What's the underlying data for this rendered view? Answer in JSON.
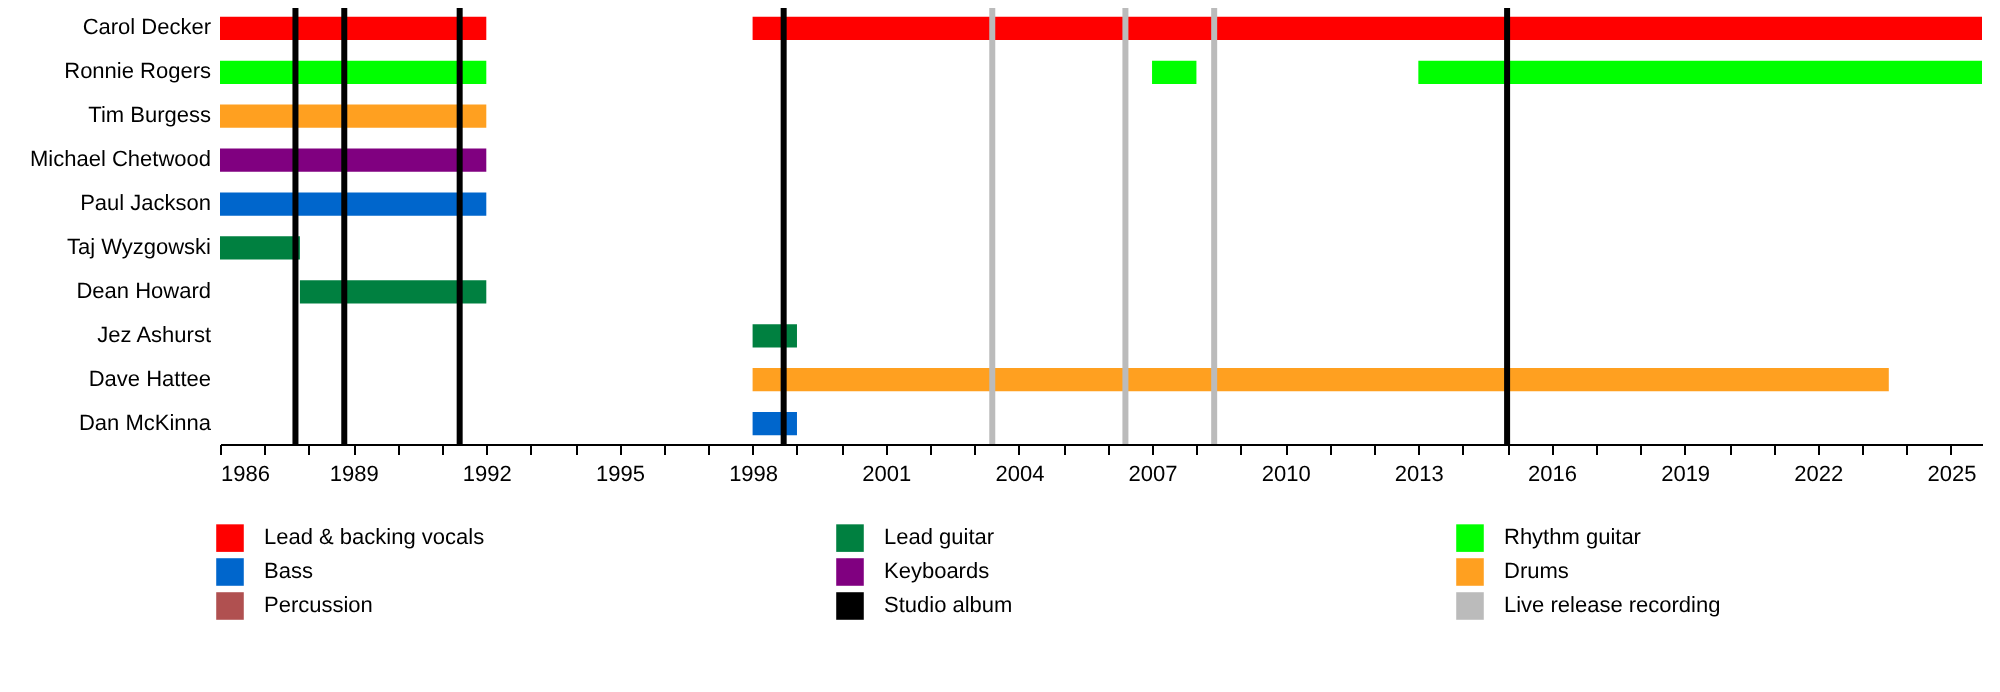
{
  "chart_data": {
    "type": "bar",
    "orientation": "horizontal",
    "categories": [
      "Carol Decker",
      "Ronnie Rogers",
      "Tim Burgess",
      "Michael Chetwood",
      "Paul Jackson",
      "Taj Wyzgowski",
      "Dean Howard",
      "Jez Ashurst",
      "Dave Hattee",
      "Dan McKinna"
    ],
    "series": [
      {
        "name": "Lead & backing vocals",
        "color": "#ff0000",
        "values": [
          6,
          null,
          null,
          null,
          null,
          null,
          null,
          null,
          null,
          null
        ],
        "base": [
          1986,
          null,
          null,
          null,
          null,
          null,
          null,
          null,
          null,
          null
        ]
      },
      {
        "name": "Lead guitar",
        "color": "#008040",
        "values": [
          null,
          null,
          null,
          null,
          null,
          1.8,
          4.2,
          null,
          null,
          null
        ],
        "base": [
          null,
          null,
          null,
          null,
          null,
          1986,
          1987.8,
          null,
          null,
          null
        ]
      },
      {
        "name": "Rhythm guitar",
        "color": "#00ff00",
        "values": [
          null,
          6,
          null,
          null,
          null,
          null,
          null,
          null,
          null,
          null
        ],
        "base": [
          null,
          1986,
          null,
          null,
          null,
          null,
          null,
          null,
          null,
          null
        ]
      },
      {
        "name": "Bass",
        "color": "#0066cc",
        "values": [
          null,
          null,
          null,
          null,
          6,
          null,
          null,
          null,
          null,
          null
        ],
        "base": [
          null,
          null,
          null,
          null,
          1986,
          null,
          null,
          null,
          null,
          null
        ]
      },
      {
        "name": "Keyboards",
        "color": "#800080",
        "values": [
          null,
          null,
          null,
          6,
          null,
          null,
          null,
          null,
          null,
          null
        ],
        "base": [
          null,
          null,
          null,
          1986,
          null,
          null,
          null,
          null,
          null,
          null
        ]
      },
      {
        "name": "Drums",
        "color": "#ffa020",
        "values": [
          null,
          null,
          6,
          null,
          null,
          null,
          null,
          null,
          null,
          null
        ],
        "base": [
          null,
          null,
          1986,
          null,
          null,
          null,
          null,
          null,
          null,
          null
        ]
      },
      {
        "name": "Percussion",
        "color": "#b05050",
        "values": [
          null,
          null,
          null,
          null,
          null,
          null,
          null,
          null,
          null,
          null
        ],
        "base": [
          null,
          null,
          null,
          null,
          null,
          null,
          null,
          null,
          null,
          null
        ]
      },
      {
        "color": "#ff0000",
        "values": [
          27.7,
          null,
          null,
          null,
          null,
          null,
          null,
          null,
          null,
          null
        ],
        "base": [
          1998,
          null,
          null,
          null,
          null,
          null,
          null,
          null,
          null,
          null
        ]
      },
      {
        "color": "#008040",
        "values": [
          null,
          null,
          null,
          null,
          null,
          null,
          null,
          1,
          null,
          null
        ],
        "base": [
          null,
          null,
          null,
          null,
          null,
          null,
          null,
          1998,
          null,
          null
        ]
      },
      {
        "color": "#00ff00",
        "values": [
          null,
          1,
          null,
          null,
          null,
          null,
          null,
          null,
          null,
          null
        ],
        "base": [
          null,
          2007,
          null,
          null,
          null,
          null,
          null,
          null,
          null,
          null
        ]
      },
      {
        "color": "#00ff00",
        "values": [
          null,
          12.7,
          null,
          null,
          null,
          null,
          null,
          null,
          null,
          null
        ],
        "base": [
          null,
          2013,
          null,
          null,
          null,
          null,
          null,
          null,
          null,
          null
        ]
      },
      {
        "color": "#0066cc",
        "values": [
          null,
          null,
          null,
          null,
          null,
          null,
          null,
          null,
          null,
          1
        ],
        "base": [
          null,
          null,
          null,
          null,
          null,
          null,
          null,
          null,
          null,
          1998
        ]
      },
      {
        "color": "#ffa020",
        "values": [
          null,
          null,
          null,
          null,
          null,
          null,
          null,
          null,
          25.6,
          null
        ],
        "base": [
          null,
          null,
          null,
          null,
          null,
          null,
          null,
          null,
          1998,
          null
        ]
      }
    ],
    "xlim": [
      1986,
      2025.7
    ],
    "xticks": [
      1986,
      {
        "value": 1987,
        "label": null
      },
      {
        "value": 1988,
        "label": null
      },
      1989,
      {
        "value": 1990,
        "label": null
      },
      {
        "value": 1991,
        "label": null
      },
      1992,
      {
        "value": 1993,
        "label": null
      },
      {
        "value": 1994,
        "label": null
      },
      1995,
      {
        "value": 1996,
        "label": null
      },
      {
        "value": 1997,
        "label": null
      },
      1998,
      {
        "value": 1999,
        "label": null
      },
      {
        "value": 2000,
        "label": null
      },
      2001,
      {
        "value": 2002,
        "label": null
      },
      {
        "value": 2003,
        "label": null
      },
      2004,
      {
        "value": 2005,
        "label": null
      },
      {
        "value": 2006,
        "label": null
      },
      2007,
      {
        "value": 2008,
        "label": null
      },
      {
        "value": 2009,
        "label": null
      },
      2010,
      {
        "value": 2011,
        "label": null
      },
      {
        "value": 2012,
        "label": null
      },
      2013,
      {
        "value": 2014,
        "label": null
      },
      {
        "value": 2015,
        "label": null
      },
      2016,
      {
        "value": 2017,
        "label": null
      },
      {
        "value": 2018,
        "label": null
      },
      2019,
      {
        "value": 2020,
        "label": null
      },
      {
        "value": 2021,
        "label": null
      },
      2022,
      {
        "value": 2023,
        "label": null
      },
      {
        "value": 2024,
        "label": null
      },
      2025
    ],
    "ref_lines": [
      {
        "axis": "x",
        "value": 1987.7,
        "label": "Studio album",
        "color": "#000000"
      },
      {
        "axis": "x",
        "value": 1988.8,
        "color": "#000000"
      },
      {
        "axis": "x",
        "value": 1991.4,
        "color": "#000000"
      },
      {
        "axis": "x",
        "value": 1998.7,
        "color": "#000000"
      },
      {
        "axis": "x",
        "value": 2015,
        "color": "#000000"
      },
      {
        "axis": "x",
        "value": 2003.4,
        "label": "Live release recording",
        "color": "#bbbbbb"
      },
      {
        "axis": "x",
        "value": 2006.4,
        "color": "#bbbbbb"
      },
      {
        "axis": "x",
        "value": 2008.4,
        "color": "#bbbbbb"
      }
    ],
    "legend": "bottom",
    "grid": false
  }
}
